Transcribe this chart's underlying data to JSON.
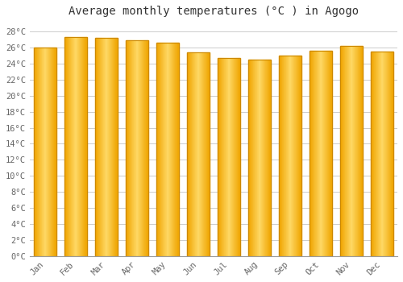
{
  "title": "Average monthly temperatures (°C ) in Agogo",
  "months": [
    "Jan",
    "Feb",
    "Mar",
    "Apr",
    "May",
    "Jun",
    "Jul",
    "Aug",
    "Sep",
    "Oct",
    "Nov",
    "Dec"
  ],
  "temperatures": [
    26.0,
    27.3,
    27.2,
    26.9,
    26.6,
    25.4,
    24.7,
    24.5,
    25.0,
    25.6,
    26.2,
    25.5
  ],
  "ylim": [
    0,
    29
  ],
  "ytick_values": [
    0,
    2,
    4,
    6,
    8,
    10,
    12,
    14,
    16,
    18,
    20,
    22,
    24,
    26,
    28
  ],
  "bar_color_center": "#FFD966",
  "bar_color_edge": "#F0A500",
  "bar_border_color": "#CC8800",
  "background_color": "#FFFFFF",
  "plot_bg_color": "#FFFFFF",
  "grid_color": "#CCCCCC",
  "title_fontsize": 10,
  "tick_fontsize": 7.5,
  "font_family": "monospace",
  "bar_width": 0.72
}
